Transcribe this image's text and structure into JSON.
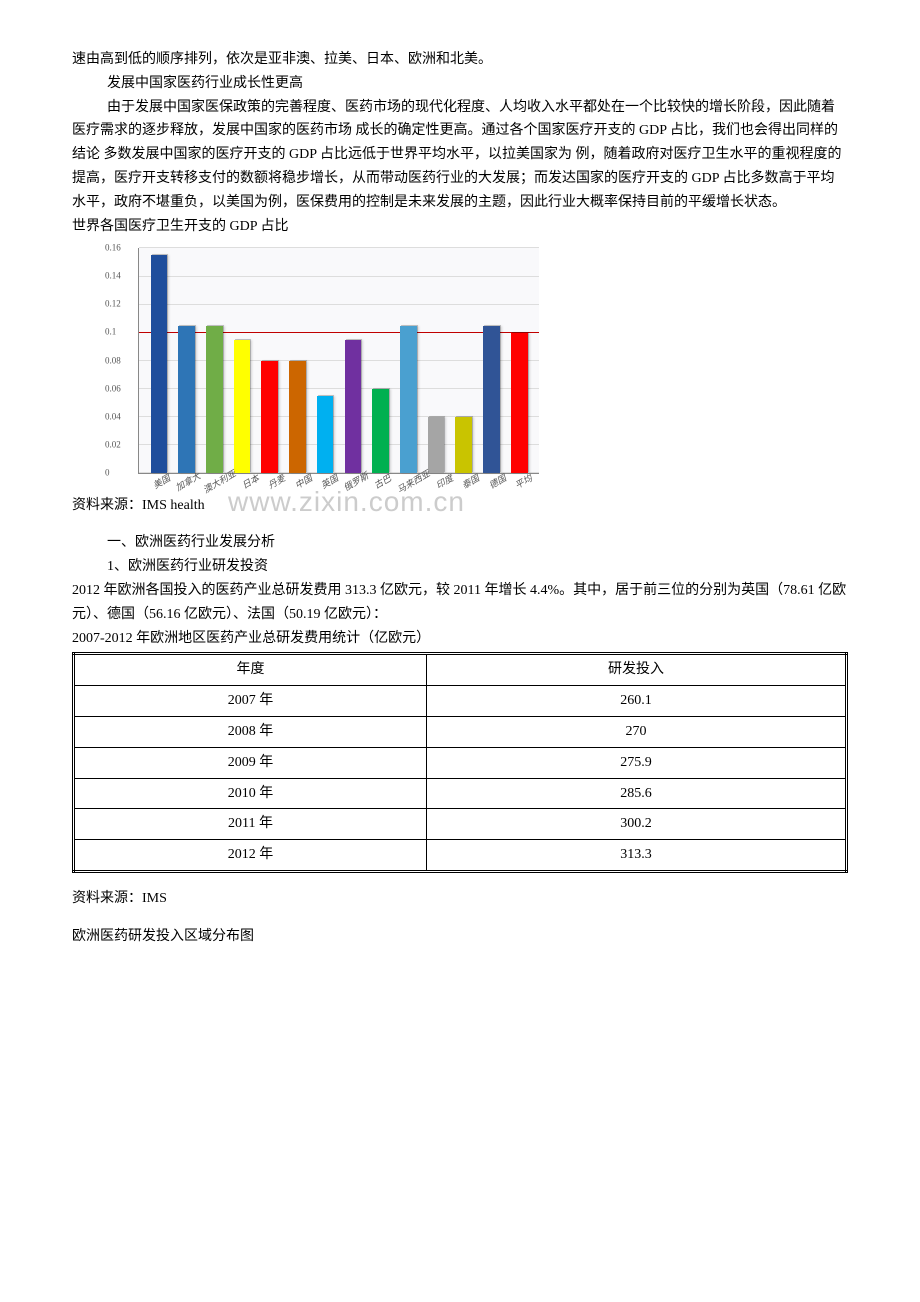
{
  "intro_line": "速由高到低的顺序排列，依次是亚非澳、拉美、日本、欧洲和北美。",
  "section1_title": "发展中国家医药行业成长性更高",
  "section1_body": "由于发展中国家医保政策的完善程度、医药市场的现代化程度、人均收入水平都处在一个比较快的增长阶段，因此随着医疗需求的逐步释放，发展中国家的医药市场 成长的确定性更高。通过各个国家医疗开支的 GDP 占比，我们也会得出同样的结论 多数发展中国家的医疗开支的 GDP 占比远低于世界平均水平，以拉美国家为 例，随着政府对医疗卫生水平的重视程度的提高，医疗开支转移支付的数额将稳步增长，从而带动医药行业的大发展；而发达国家的医疗开支的 GDP 占比多数高于平均水平，政府不堪重负，以美国为例，医保费用的控制是未来发展的主题，因此行业大概率保持目前的平缓增长状态。",
  "chart1_title": "世界各国医疗卫生开支的 GDP 占比",
  "chart1_source": "资料来源：IMS health",
  "chart1": {
    "type": "bar",
    "ylim": [
      0,
      0.16
    ],
    "ytick_step": 0.02,
    "ref_value": 0.1,
    "ref_color": "#c00000",
    "background": "#f9f9fb",
    "grid_color": "#dddddd",
    "categories": [
      "美国",
      "加拿大",
      "澳大利亚",
      "日本",
      "丹麦",
      "中国",
      "英国",
      "俄罗斯",
      "古巴",
      "马来西亚",
      "印度",
      "泰国",
      "德国",
      "平均"
    ],
    "values": [
      0.155,
      0.105,
      0.105,
      0.095,
      0.08,
      0.08,
      0.055,
      0.095,
      0.06,
      0.105,
      0.04,
      0.04,
      0.105,
      0.1
    ],
    "colors": [
      "#1f4e9c",
      "#2e75b6",
      "#70ad47",
      "#ffff00",
      "#ff0000",
      "#cc6600",
      "#00b0f0",
      "#7030a0",
      "#00b050",
      "#4aa0d0",
      "#a5a5a5",
      "#c9c400",
      "#305496",
      "#ff0000"
    ]
  },
  "watermark": "www.zixin.com.cn",
  "section2_h1": "一、欧洲医药行业发展分析",
  "section2_h2": "1、欧洲医药行业研发投资",
  "section2_p1": "2012 年欧洲各国投入的医药产业总研发费用 313.3 亿欧元，较 2011 年增长 4.4%。其中，居于前三位的分别为英国（78.61 亿欧元）、德国（56.16 亿欧元）、法国（50.19 亿欧元）：",
  "table1_title": "2007-2012 年欧洲地区医药产业总研发费用统计（亿欧元）",
  "table1": {
    "columns": [
      "年度",
      "研发投入"
    ],
    "rows": [
      [
        "2007 年",
        "260.1"
      ],
      [
        "2008 年",
        "270"
      ],
      [
        "2009 年",
        "275.9"
      ],
      [
        "2010 年",
        "285.6"
      ],
      [
        "2011 年",
        "300.2"
      ],
      [
        "2012 年",
        "313.3"
      ]
    ]
  },
  "table1_source": "资料来源：IMS",
  "footer_title": "欧洲医药研发投入区域分布图"
}
